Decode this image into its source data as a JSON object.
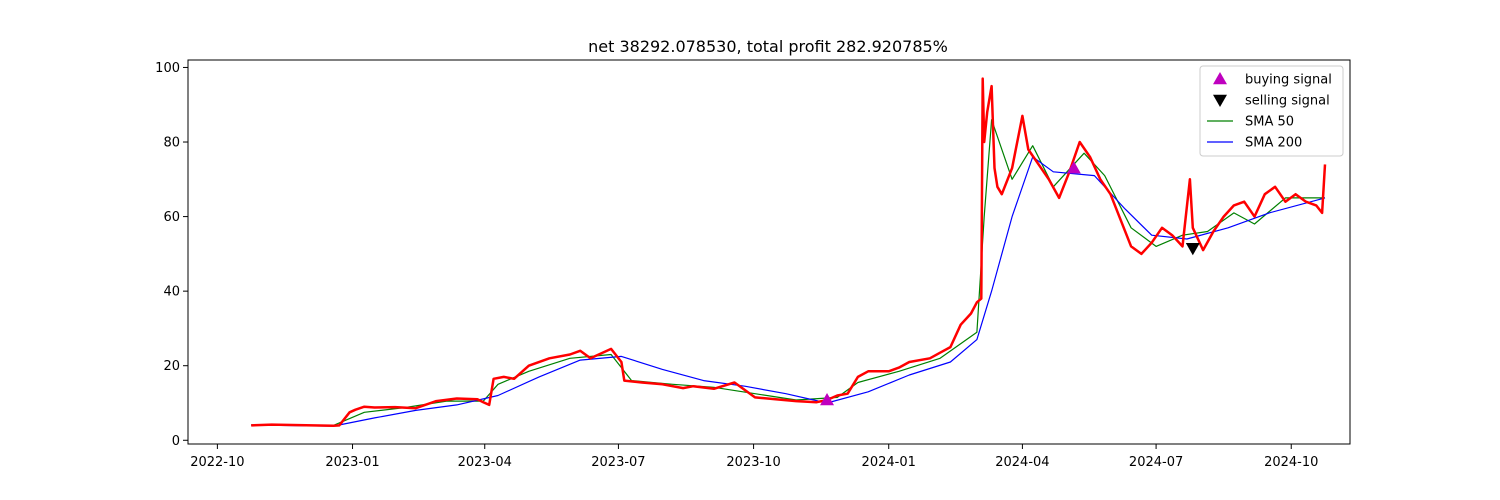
{
  "chart_data": {
    "type": "line",
    "title": "net 38292.078530, total profit 282.920785%",
    "xlabel": "",
    "ylabel": "",
    "x_ticks": [
      "2022-10",
      "2023-01",
      "2023-04",
      "2023-07",
      "2023-10",
      "2024-01",
      "2024-04",
      "2024-07",
      "2024-10"
    ],
    "y_ticks": [
      0,
      20,
      40,
      60,
      80,
      100
    ],
    "xlim": [
      "2022-09-11",
      "2024-11-10"
    ],
    "ylim": [
      -1,
      102
    ],
    "grid": false,
    "legend_position": "top-right",
    "series": [
      {
        "name": "",
        "color": "#ff0000",
        "kind": "price",
        "points": [
          [
            "2022-10-24",
            4.0
          ],
          [
            "2022-11-07",
            4.2
          ],
          [
            "2022-11-21",
            4.1
          ],
          [
            "2022-12-05",
            4.0
          ],
          [
            "2022-12-19",
            3.9
          ],
          [
            "2022-12-23",
            4.0
          ],
          [
            "2022-12-30",
            7.5
          ],
          [
            "2023-01-03",
            8.2
          ],
          [
            "2023-01-09",
            9.0
          ],
          [
            "2023-01-16",
            8.8
          ],
          [
            "2023-01-30",
            8.9
          ],
          [
            "2023-02-13",
            8.6
          ],
          [
            "2023-02-27",
            10.5
          ],
          [
            "2023-03-13",
            11.2
          ],
          [
            "2023-03-27",
            11.0
          ],
          [
            "2023-03-31",
            10.2
          ],
          [
            "2023-04-04",
            9.5
          ],
          [
            "2023-04-07",
            16.5
          ],
          [
            "2023-04-14",
            17.0
          ],
          [
            "2023-04-21",
            16.5
          ],
          [
            "2023-05-01",
            20.0
          ],
          [
            "2023-05-15",
            22.0
          ],
          [
            "2023-05-29",
            23.0
          ],
          [
            "2023-06-05",
            24.0
          ],
          [
            "2023-06-12",
            22.0
          ],
          [
            "2023-06-26",
            24.5
          ],
          [
            "2023-07-03",
            21.0
          ],
          [
            "2023-07-05",
            16.0
          ],
          [
            "2023-07-17",
            15.5
          ],
          [
            "2023-07-31",
            15.0
          ],
          [
            "2023-08-14",
            14.0
          ],
          [
            "2023-08-21",
            14.5
          ],
          [
            "2023-09-04",
            13.8
          ],
          [
            "2023-09-18",
            15.5
          ],
          [
            "2023-10-02",
            11.5
          ],
          [
            "2023-10-16",
            11.0
          ],
          [
            "2023-10-30",
            10.5
          ],
          [
            "2023-11-13",
            10.2
          ],
          [
            "2023-11-20",
            10.8
          ],
          [
            "2023-11-27",
            12.0
          ],
          [
            "2023-12-04",
            12.5
          ],
          [
            "2023-12-11",
            17.0
          ],
          [
            "2023-12-18",
            18.5
          ],
          [
            "2024-01-01",
            18.5
          ],
          [
            "2024-01-08",
            19.5
          ],
          [
            "2024-01-15",
            21.0
          ],
          [
            "2024-01-29",
            22.0
          ],
          [
            "2024-02-05",
            23.5
          ],
          [
            "2024-02-12",
            25.0
          ],
          [
            "2024-02-19",
            31.0
          ],
          [
            "2024-02-26",
            34.0
          ],
          [
            "2024-03-01",
            37.0
          ],
          [
            "2024-03-04",
            38.0
          ],
          [
            "2024-03-05",
            97.0
          ],
          [
            "2024-03-06",
            80.0
          ],
          [
            "2024-03-08",
            88.0
          ],
          [
            "2024-03-11",
            95.0
          ],
          [
            "2024-03-13",
            73.0
          ],
          [
            "2024-03-15",
            68.0
          ],
          [
            "2024-03-18",
            66.0
          ],
          [
            "2024-03-25",
            73.0
          ],
          [
            "2024-04-01",
            87.0
          ],
          [
            "2024-04-05",
            78.0
          ],
          [
            "2024-04-12",
            74.0
          ],
          [
            "2024-04-19",
            70.0
          ],
          [
            "2024-04-26",
            65.0
          ],
          [
            "2024-05-03",
            72.0
          ],
          [
            "2024-05-10",
            80.0
          ],
          [
            "2024-05-17",
            76.0
          ],
          [
            "2024-05-24",
            70.0
          ],
          [
            "2024-05-31",
            66.0
          ],
          [
            "2024-06-07",
            59.0
          ],
          [
            "2024-06-14",
            52.0
          ],
          [
            "2024-06-21",
            50.0
          ],
          [
            "2024-06-28",
            53.0
          ],
          [
            "2024-07-05",
            57.0
          ],
          [
            "2024-07-12",
            55.0
          ],
          [
            "2024-07-19",
            52.0
          ],
          [
            "2024-07-24",
            70.0
          ],
          [
            "2024-07-26",
            57.0
          ],
          [
            "2024-08-02",
            51.0
          ],
          [
            "2024-08-09",
            56.0
          ],
          [
            "2024-08-16",
            60.0
          ],
          [
            "2024-08-23",
            63.0
          ],
          [
            "2024-08-30",
            64.0
          ],
          [
            "2024-09-06",
            60.0
          ],
          [
            "2024-09-13",
            66.0
          ],
          [
            "2024-09-20",
            68.0
          ],
          [
            "2024-09-27",
            64.0
          ],
          [
            "2024-10-04",
            66.0
          ],
          [
            "2024-10-11",
            64.0
          ],
          [
            "2024-10-18",
            63.0
          ],
          [
            "2024-10-22",
            61.0
          ],
          [
            "2024-10-24",
            74.0
          ]
        ]
      },
      {
        "name": "SMA 50",
        "color": "#008000",
        "kind": "sma",
        "points": [
          [
            "2022-10-24",
            4.1
          ],
          [
            "2022-11-21",
            4.1
          ],
          [
            "2022-12-19",
            4.0
          ],
          [
            "2023-01-09",
            7.5
          ],
          [
            "2023-02-06",
            8.8
          ],
          [
            "2023-03-06",
            10.5
          ],
          [
            "2023-03-31",
            10.5
          ],
          [
            "2023-04-10",
            15.0
          ],
          [
            "2023-05-01",
            18.5
          ],
          [
            "2023-05-29",
            22.0
          ],
          [
            "2023-06-26",
            23.0
          ],
          [
            "2023-07-10",
            16.0
          ],
          [
            "2023-08-07",
            15.0
          ],
          [
            "2023-09-04",
            14.2
          ],
          [
            "2023-10-02",
            12.5
          ],
          [
            "2023-10-30",
            10.8
          ],
          [
            "2023-11-27",
            11.5
          ],
          [
            "2023-12-11",
            15.5
          ],
          [
            "2024-01-08",
            18.5
          ],
          [
            "2024-02-05",
            22.0
          ],
          [
            "2024-03-01",
            29.0
          ],
          [
            "2024-03-06",
            60.0
          ],
          [
            "2024-03-11",
            86.0
          ],
          [
            "2024-03-25",
            70.0
          ],
          [
            "2024-04-08",
            79.0
          ],
          [
            "2024-04-22",
            68.0
          ],
          [
            "2024-05-13",
            77.0
          ],
          [
            "2024-05-27",
            71.0
          ],
          [
            "2024-06-14",
            57.0
          ],
          [
            "2024-07-01",
            52.0
          ],
          [
            "2024-07-19",
            55.0
          ],
          [
            "2024-08-05",
            56.0
          ],
          [
            "2024-08-23",
            61.0
          ],
          [
            "2024-09-06",
            58.0
          ],
          [
            "2024-09-27",
            65.0
          ],
          [
            "2024-10-24",
            65.0
          ]
        ]
      },
      {
        "name": "SMA 200",
        "color": "#0000ff",
        "kind": "sma",
        "points": [
          [
            "2022-10-24",
            4.1
          ],
          [
            "2022-12-19",
            3.8
          ],
          [
            "2023-01-16",
            6.0
          ],
          [
            "2023-02-13",
            8.0
          ],
          [
            "2023-03-13",
            9.5
          ],
          [
            "2023-04-10",
            12.0
          ],
          [
            "2023-05-08",
            17.0
          ],
          [
            "2023-06-05",
            21.5
          ],
          [
            "2023-07-03",
            22.5
          ],
          [
            "2023-07-31",
            19.0
          ],
          [
            "2023-08-28",
            16.0
          ],
          [
            "2023-09-25",
            14.5
          ],
          [
            "2023-10-23",
            12.5
          ],
          [
            "2023-11-20",
            10.0
          ],
          [
            "2023-12-18",
            13.0
          ],
          [
            "2024-01-15",
            17.5
          ],
          [
            "2024-02-12",
            21.0
          ],
          [
            "2024-03-01",
            27.0
          ],
          [
            "2024-03-11",
            40.0
          ],
          [
            "2024-03-25",
            60.0
          ],
          [
            "2024-04-08",
            76.0
          ],
          [
            "2024-04-22",
            72.0
          ],
          [
            "2024-05-20",
            71.0
          ],
          [
            "2024-06-10",
            62.0
          ],
          [
            "2024-06-28",
            55.0
          ],
          [
            "2024-07-22",
            54.0
          ],
          [
            "2024-08-19",
            57.0
          ],
          [
            "2024-09-16",
            61.0
          ],
          [
            "2024-10-24",
            65.0
          ]
        ]
      }
    ],
    "markers": [
      {
        "name": "buying signal",
        "shape": "triangle-up",
        "color": "#bf00bf",
        "points": [
          [
            "2023-11-20",
            10.8
          ],
          [
            "2024-05-06",
            73.0
          ]
        ]
      },
      {
        "name": "selling signal",
        "shape": "triangle-down",
        "color": "#000000",
        "points": [
          [
            "2024-07-26",
            51.5
          ]
        ]
      }
    ],
    "legend": [
      {
        "label": "buying signal",
        "color": "#bf00bf",
        "symbol": "triangle-up"
      },
      {
        "label": "selling signal",
        "color": "#000000",
        "symbol": "triangle-down"
      },
      {
        "label": "SMA 50",
        "color": "#008000",
        "symbol": "line"
      },
      {
        "label": "SMA 200",
        "color": "#0000ff",
        "symbol": "line"
      }
    ]
  }
}
